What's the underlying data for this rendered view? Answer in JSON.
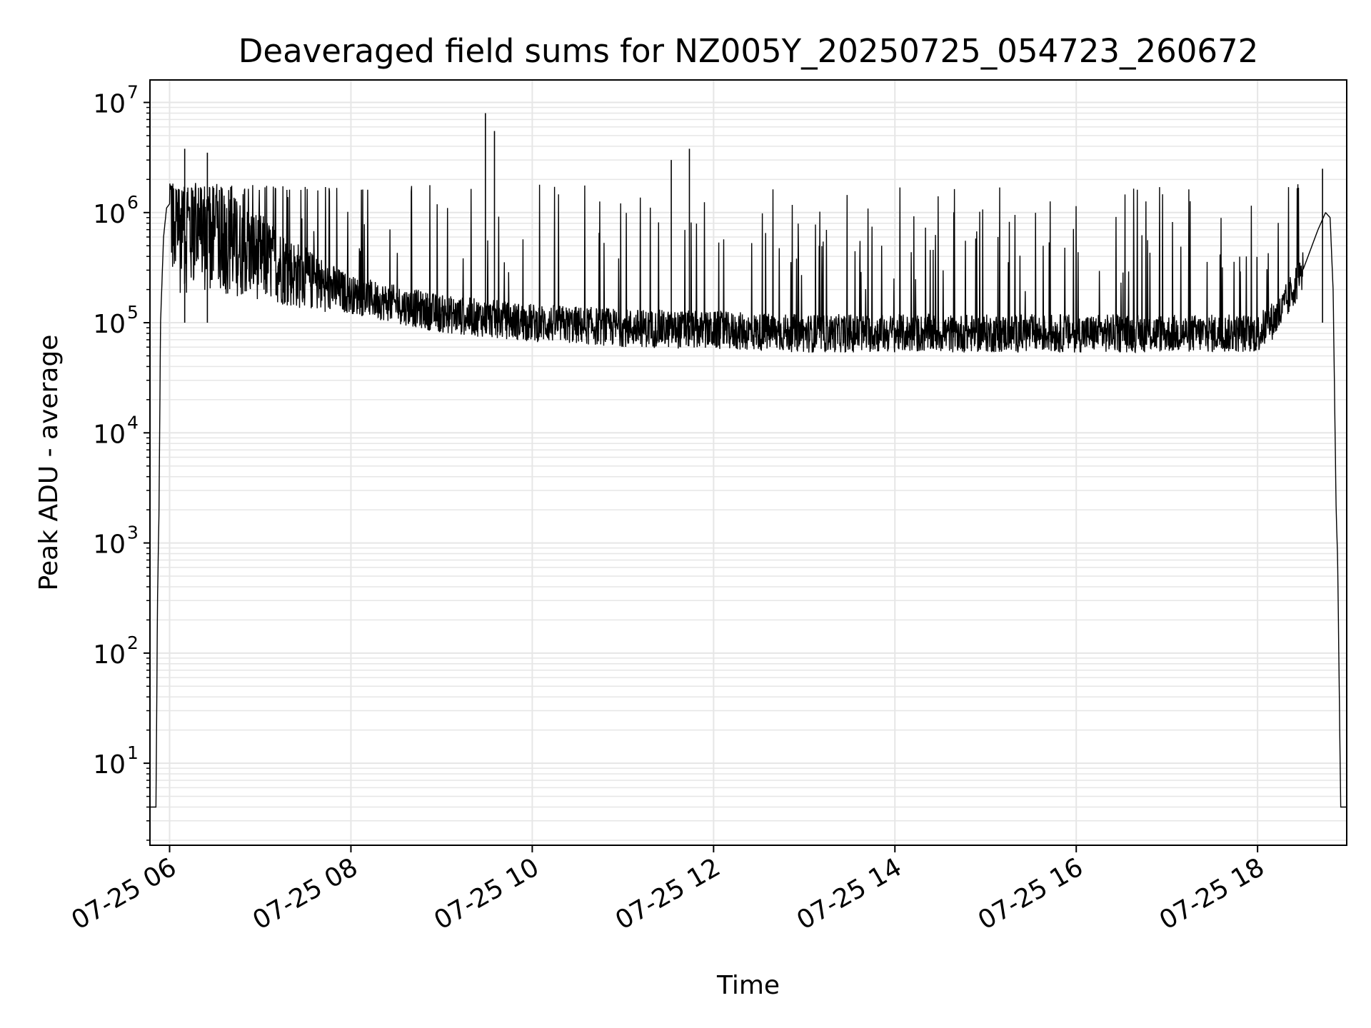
{
  "chart_data": {
    "type": "line",
    "title": "Deaveraged field sums for NZ005Y_20250725_054723_260672",
    "xlabel": "Time",
    "ylabel": "Peak ADU - average",
    "yscale": "log",
    "ylim": [
      1.8,
      16000000
    ],
    "xlim": [
      "2025-07-25 05:47",
      "2025-07-25 18:59"
    ],
    "x_ticks": [
      {
        "t": "2025-07-25 06:00",
        "label": "07-25 06"
      },
      {
        "t": "2025-07-25 08:00",
        "label": "07-25 08"
      },
      {
        "t": "2025-07-25 10:00",
        "label": "07-25 10"
      },
      {
        "t": "2025-07-25 12:00",
        "label": "07-25 12"
      },
      {
        "t": "2025-07-25 14:00",
        "label": "07-25 14"
      },
      {
        "t": "2025-07-25 16:00",
        "label": "07-25 16"
      },
      {
        "t": "2025-07-25 18:00",
        "label": "07-25 18"
      }
    ],
    "y_ticks": [
      {
        "value": 10,
        "base": "10",
        "exp": "1"
      },
      {
        "value": 100,
        "base": "10",
        "exp": "2"
      },
      {
        "value": 1000,
        "base": "10",
        "exp": "3"
      },
      {
        "value": 10000,
        "base": "10",
        "exp": "4"
      },
      {
        "value": 100000,
        "base": "10",
        "exp": "5"
      },
      {
        "value": 1000000,
        "base": "10",
        "exp": "6"
      },
      {
        "value": 10000000,
        "base": "10",
        "exp": "7"
      }
    ],
    "grid": true,
    "line_color": "#000000",
    "grid_color": "#e6e6e6",
    "series": [
      {
        "x": [
          "2025-07-25 05:47",
          "2025-07-25 05:51",
          "2025-07-25 05:52",
          "2025-07-25 05:53",
          "2025-07-25 05:54",
          "2025-07-25 05:56",
          "2025-07-25 05:58",
          "2025-07-25 06:00",
          "2025-07-25 06:05",
          "2025-07-25 06:15",
          "2025-07-25 06:30",
          "2025-07-25 07:00",
          "2025-07-25 07:30",
          "2025-07-25 08:00",
          "2025-07-25 09:00",
          "2025-07-25 10:00",
          "2025-07-25 11:00",
          "2025-07-25 12:00",
          "2025-07-25 13:00",
          "2025-07-25 14:00",
          "2025-07-25 15:00",
          "2025-07-25 16:00",
          "2025-07-25 17:00",
          "2025-07-25 18:00",
          "2025-07-25 18:15",
          "2025-07-25 18:30",
          "2025-07-25 18:40",
          "2025-07-25 18:45",
          "2025-07-25 18:48",
          "2025-07-25 18:50",
          "2025-07-25 18:52",
          "2025-07-25 18:53",
          "2025-07-25 18:55",
          "2025-07-25 18:59"
        ],
        "y": [
          4,
          4,
          300,
          2000,
          100000,
          600000,
          1100000,
          1200000,
          700000,
          700000,
          600000,
          400000,
          250000,
          180000,
          120000,
          100000,
          90000,
          85000,
          80000,
          80000,
          80000,
          80000,
          80000,
          80000,
          120000,
          300000,
          700000,
          1000000,
          900000,
          200000,
          2000,
          700,
          4,
          4
        ]
      }
    ],
    "spikes": [
      {
        "t": "2025-07-25 06:10",
        "y": 3800000
      },
      {
        "t": "2025-07-25 06:25",
        "y": 3500000
      },
      {
        "t": "2025-07-25 09:29",
        "y": 8000000
      },
      {
        "t": "2025-07-25 09:35",
        "y": 5500000
      },
      {
        "t": "2025-07-25 11:32",
        "y": 3000000
      },
      {
        "t": "2025-07-25 11:44",
        "y": 3800000
      },
      {
        "t": "2025-07-25 18:43",
        "y": 2500000
      }
    ]
  }
}
